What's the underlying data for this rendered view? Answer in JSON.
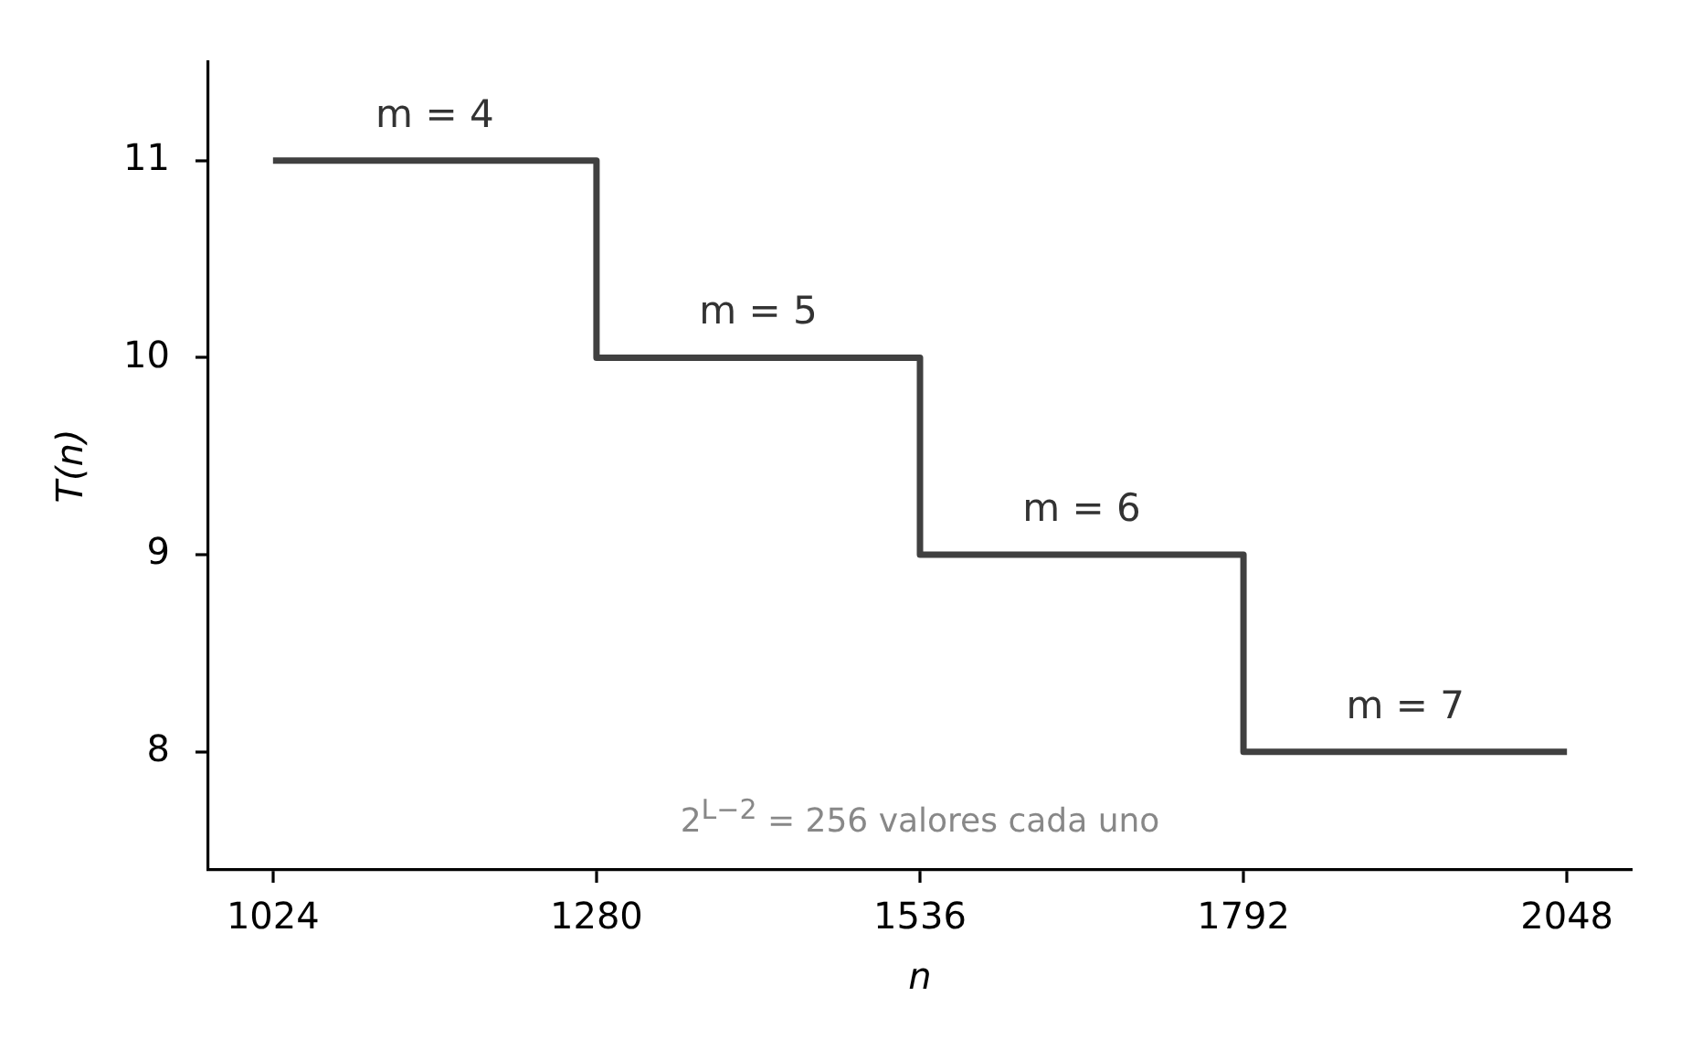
{
  "chart_data": {
    "type": "step",
    "xlabel": "n",
    "ylabel": "T(n)",
    "x": [
      1024,
      1280,
      1536,
      1792,
      2048
    ],
    "series": [
      {
        "color": "#404040",
        "values": [
          11,
          10,
          9,
          8,
          8
        ]
      }
    ],
    "xlim": [
      972.8,
      2099.2
    ],
    "ylim": [
      7.4,
      11.5
    ],
    "xticks": [
      1024,
      1280,
      1536,
      1792,
      2048
    ],
    "yticks": [
      8,
      9,
      10,
      11
    ],
    "annotations": [
      {
        "text": "m = 4",
        "x": 1152,
        "y": 11
      },
      {
        "text": "m = 5",
        "x": 1408,
        "y": 10
      },
      {
        "text": "m = 6",
        "x": 1664,
        "y": 9
      },
      {
        "text": "m = 7",
        "x": 1920,
        "y": 8
      },
      "2$^{L−2}$ = 256 valores cada uno"
    ],
    "legend": false
  }
}
